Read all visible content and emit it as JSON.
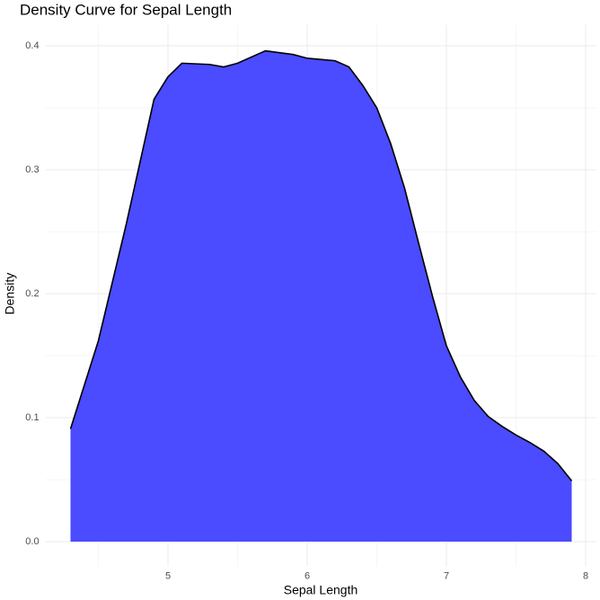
{
  "chart_data": {
    "type": "density",
    "title": "Density Curve for Sepal Length",
    "x_label": "Sepal Length",
    "y_label": "Density",
    "x": [
      4.3,
      4.5,
      4.7,
      4.9,
      5.0,
      5.1,
      5.3,
      5.4,
      5.5,
      5.7,
      5.9,
      6.0,
      6.2,
      6.3,
      6.4,
      6.5,
      6.6,
      6.7,
      6.8,
      6.9,
      7.0,
      7.1,
      7.2,
      7.3,
      7.4,
      7.5,
      7.6,
      7.7,
      7.8,
      7.9
    ],
    "values": [
      0.091,
      0.162,
      0.256,
      0.357,
      0.375,
      0.386,
      0.385,
      0.383,
      0.386,
      0.396,
      0.393,
      0.39,
      0.388,
      0.383,
      0.368,
      0.35,
      0.321,
      0.285,
      0.241,
      0.198,
      0.158,
      0.133,
      0.114,
      0.101,
      0.093,
      0.086,
      0.08,
      0.073,
      0.063,
      0.049
    ],
    "color": "#4b4bff",
    "line_color": "#000000",
    "xlim": [
      4.12,
      8.08
    ],
    "ylim": [
      -0.0199,
      0.417
    ],
    "xticks": [
      5,
      6,
      7,
      8
    ],
    "yticks": [
      {
        "value": 0,
        "label": "0.0"
      },
      0.1,
      0.2,
      0.3,
      0.4
    ],
    "x_minor_grid": [
      4.5,
      5.5,
      6.5,
      7.5
    ],
    "y_minor_grid": [
      0.05,
      0.15,
      0.25,
      0.35
    ],
    "grid": true
  }
}
